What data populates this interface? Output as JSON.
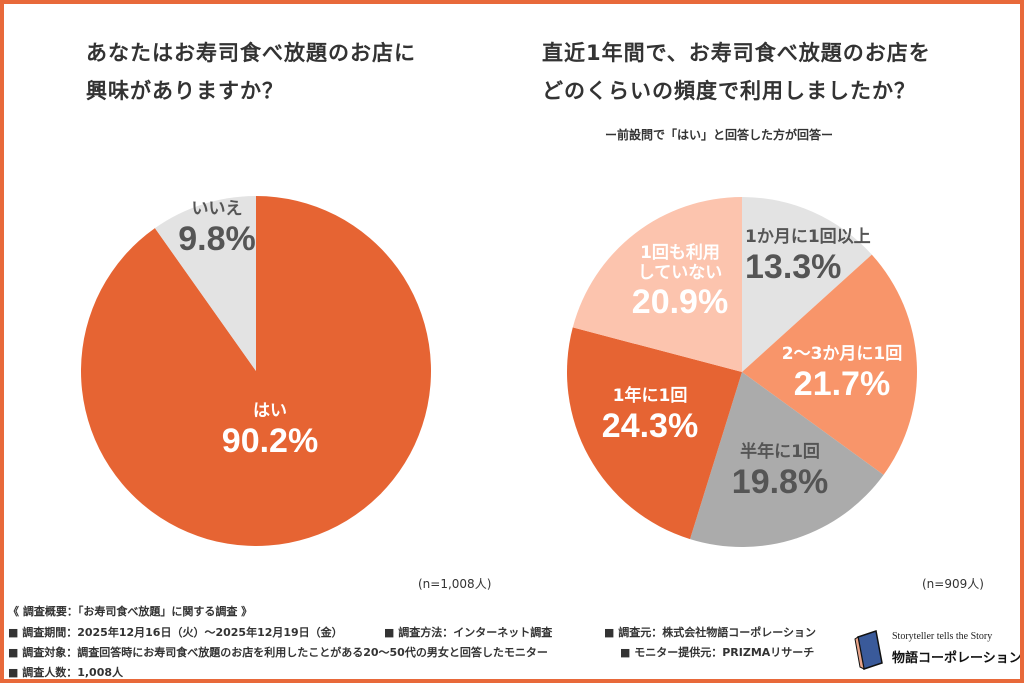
{
  "footer": {
    "heading": "《 調査概要：「お寿司食べ放題」に関する調査 》",
    "period": "■ 調査期間：2025年12月16日（火）～2025年12月19日（金）",
    "method": "■ 調査方法：インターネット調査",
    "source": "■ 調査元：株式会社物語コーポレーション",
    "target": "■ 調査対象：調査回答時にお寿司食べ放題のお店を利用したことがある20～50代の男女と回答したモニター",
    "provider": "■ モニター提供元：PRIZMAリサーチ",
    "count": "■ 調査人数：1,008人"
  },
  "logo": {
    "tagline": "Storyteller tells the Story",
    "name": "物語コーポレーション"
  },
  "chart_data": [
    {
      "type": "pie",
      "title": "あなたはお寿司食べ放題のお店に\n興味がありますか？",
      "title_lines": [
        "あなたはお寿司食べ放題のお店に",
        "興味がありますか？"
      ],
      "note": "(n=1,008人)",
      "slices": [
        {
          "label": "はい",
          "value": 90.2,
          "display": "90.2%",
          "color": "#E66433",
          "text_color": "#ffffff"
        },
        {
          "label": "いいえ",
          "value": 9.8,
          "display": "9.8%",
          "color": "#E3E3E3",
          "text_color": "#555555"
        }
      ]
    },
    {
      "type": "pie",
      "title_lines": [
        "直近1年間で、お寿司食べ放題のお店を",
        "どのくらいの頻度で利用しましたか？"
      ],
      "subtitle": "ー前設問で「はい」と回答した方が回答ー",
      "note": "(n=909人)",
      "slices": [
        {
          "label": "1か月に1回以上",
          "value": 13.3,
          "display": "13.3%",
          "color": "#E3E3E3",
          "text_color": "#555555"
        },
        {
          "label": "2～3か月に1回",
          "value": 21.7,
          "display": "21.7%",
          "color": "#F8956A",
          "text_color": "#ffffff"
        },
        {
          "label": "半年に1回",
          "value": 19.8,
          "display": "19.8%",
          "color": "#ABABAB",
          "text_color": "#555555"
        },
        {
          "label": "1年に1回",
          "value": 24.3,
          "display": "24.3%",
          "color": "#E66433",
          "text_color": "#ffffff"
        },
        {
          "label": "1回も利用していない",
          "label_lines": [
            "1回も利用",
            "していない"
          ],
          "value": 20.9,
          "display": "20.9%",
          "color": "#FCC4AE",
          "text_color": "#ffffff"
        }
      ]
    }
  ]
}
